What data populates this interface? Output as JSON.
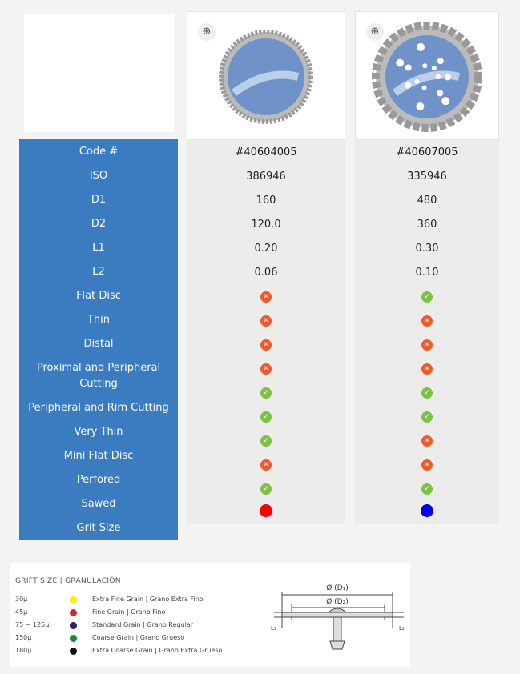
{
  "rows": [
    "Code #",
    "ISO",
    "D1",
    "D2",
    "L1",
    "L2",
    "Flat Disc",
    "Thin",
    "Distal",
    "Proximal and Peripheral Cutting",
    "Peripheral and Rim Cutting",
    "Very Thin",
    "Mini Flat Disc",
    "Perfored",
    "Sawed",
    "Grit Size"
  ],
  "products": [
    {
      "values": [
        "#40604005",
        "386946",
        "160",
        "120.0",
        "0.20",
        "0.06",
        false,
        false,
        false,
        false,
        true,
        true,
        true,
        false,
        true,
        "#ff0000"
      ]
    },
    {
      "values": [
        "#40607005",
        "335946",
        "480",
        "360",
        "0.30",
        "0.10",
        true,
        false,
        false,
        false,
        true,
        true,
        false,
        false,
        true,
        "#0000ee"
      ]
    }
  ],
  "legend": {
    "title": "GRIFT SIZE | GRANULACIÓN",
    "items": [
      {
        "size": "30μ",
        "color": "#ffee00",
        "name": "Extra Fine Grain | Grano Extra Fino"
      },
      {
        "size": "45μ",
        "color": "#d62828",
        "name": "Fine Grain | Grano Fino"
      },
      {
        "size": "75 ~ 125μ",
        "color": "#2a1f6e",
        "name": "Standard Grain | Grano Regular"
      },
      {
        "size": "150μ",
        "color": "#1a8a3a",
        "name": "Coarse Grain | Grano Grueso"
      },
      {
        "size": "180μ",
        "color": "#111111",
        "name": "Extra Coarse Grain | Grano Extra Grueso"
      }
    ]
  },
  "diagram": {
    "d1": "Ø (D₁)",
    "d2": "Ø (D₂)",
    "l1": "L₁",
    "l2": "L₂"
  }
}
